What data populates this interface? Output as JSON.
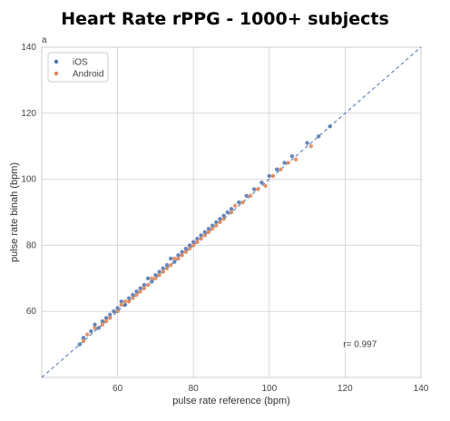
{
  "chart_data": {
    "type": "scatter",
    "title": "Heart Rate rPPG - 1000+ subjects",
    "panel_label": "a",
    "xlabel": "pulse rate reference (bpm)",
    "ylabel": "pulse rate binah (bpm)",
    "xlim": [
      40,
      140
    ],
    "ylim": [
      40,
      140
    ],
    "xticks": [
      60,
      80,
      100,
      120,
      140
    ],
    "yticks": [
      60,
      80,
      100,
      120,
      140
    ],
    "grid": true,
    "legend_position": "top-left",
    "identity_line": true,
    "annotation": "r= 0.997",
    "series": [
      {
        "name": "iOS",
        "color": "#4c72b0",
        "points": [
          [
            50,
            50
          ],
          [
            51,
            52
          ],
          [
            53,
            54
          ],
          [
            54,
            56
          ],
          [
            55,
            55
          ],
          [
            56,
            57
          ],
          [
            57,
            58
          ],
          [
            58,
            59
          ],
          [
            59,
            60
          ],
          [
            60,
            61
          ],
          [
            61,
            63
          ],
          [
            62,
            62
          ],
          [
            63,
            64
          ],
          [
            64,
            65
          ],
          [
            65,
            66
          ],
          [
            66,
            67
          ],
          [
            67,
            68
          ],
          [
            68,
            70
          ],
          [
            69,
            69
          ],
          [
            70,
            71
          ],
          [
            71,
            72
          ],
          [
            72,
            73
          ],
          [
            73,
            74
          ],
          [
            74,
            76
          ],
          [
            75,
            75
          ],
          [
            76,
            77
          ],
          [
            77,
            78
          ],
          [
            78,
            79
          ],
          [
            79,
            80
          ],
          [
            80,
            81
          ],
          [
            81,
            82
          ],
          [
            82,
            83
          ],
          [
            83,
            84
          ],
          [
            84,
            85
          ],
          [
            85,
            86
          ],
          [
            86,
            87
          ],
          [
            87,
            88
          ],
          [
            88,
            89
          ],
          [
            89,
            90
          ],
          [
            90,
            91
          ],
          [
            92,
            93
          ],
          [
            94,
            95
          ],
          [
            96,
            97
          ],
          [
            98,
            99
          ],
          [
            100,
            101
          ],
          [
            102,
            103
          ],
          [
            104,
            105
          ],
          [
            106,
            107
          ],
          [
            110,
            111
          ],
          [
            113,
            113
          ],
          [
            116,
            116
          ]
        ]
      },
      {
        "name": "Android",
        "color": "#dd8452",
        "points": [
          [
            51,
            51
          ],
          [
            52,
            53
          ],
          [
            54,
            55
          ],
          [
            56,
            56
          ],
          [
            57,
            57
          ],
          [
            58,
            58
          ],
          [
            60,
            60
          ],
          [
            61,
            62
          ],
          [
            62,
            63
          ],
          [
            63,
            63
          ],
          [
            64,
            64
          ],
          [
            65,
            65
          ],
          [
            66,
            66
          ],
          [
            67,
            67
          ],
          [
            68,
            68
          ],
          [
            69,
            70
          ],
          [
            70,
            70
          ],
          [
            71,
            71
          ],
          [
            72,
            72
          ],
          [
            73,
            73
          ],
          [
            74,
            74
          ],
          [
            75,
            76
          ],
          [
            76,
            76
          ],
          [
            77,
            77
          ],
          [
            78,
            78
          ],
          [
            79,
            79
          ],
          [
            80,
            80
          ],
          [
            81,
            81
          ],
          [
            82,
            82
          ],
          [
            83,
            83
          ],
          [
            84,
            84
          ],
          [
            85,
            85
          ],
          [
            86,
            86
          ],
          [
            87,
            87
          ],
          [
            88,
            88
          ],
          [
            90,
            90
          ],
          [
            91,
            92
          ],
          [
            93,
            93
          ],
          [
            95,
            95
          ],
          [
            97,
            97
          ],
          [
            99,
            98
          ],
          [
            101,
            101
          ],
          [
            103,
            103
          ],
          [
            105,
            105
          ],
          [
            107,
            106
          ],
          [
            111,
            110
          ]
        ]
      }
    ]
  }
}
